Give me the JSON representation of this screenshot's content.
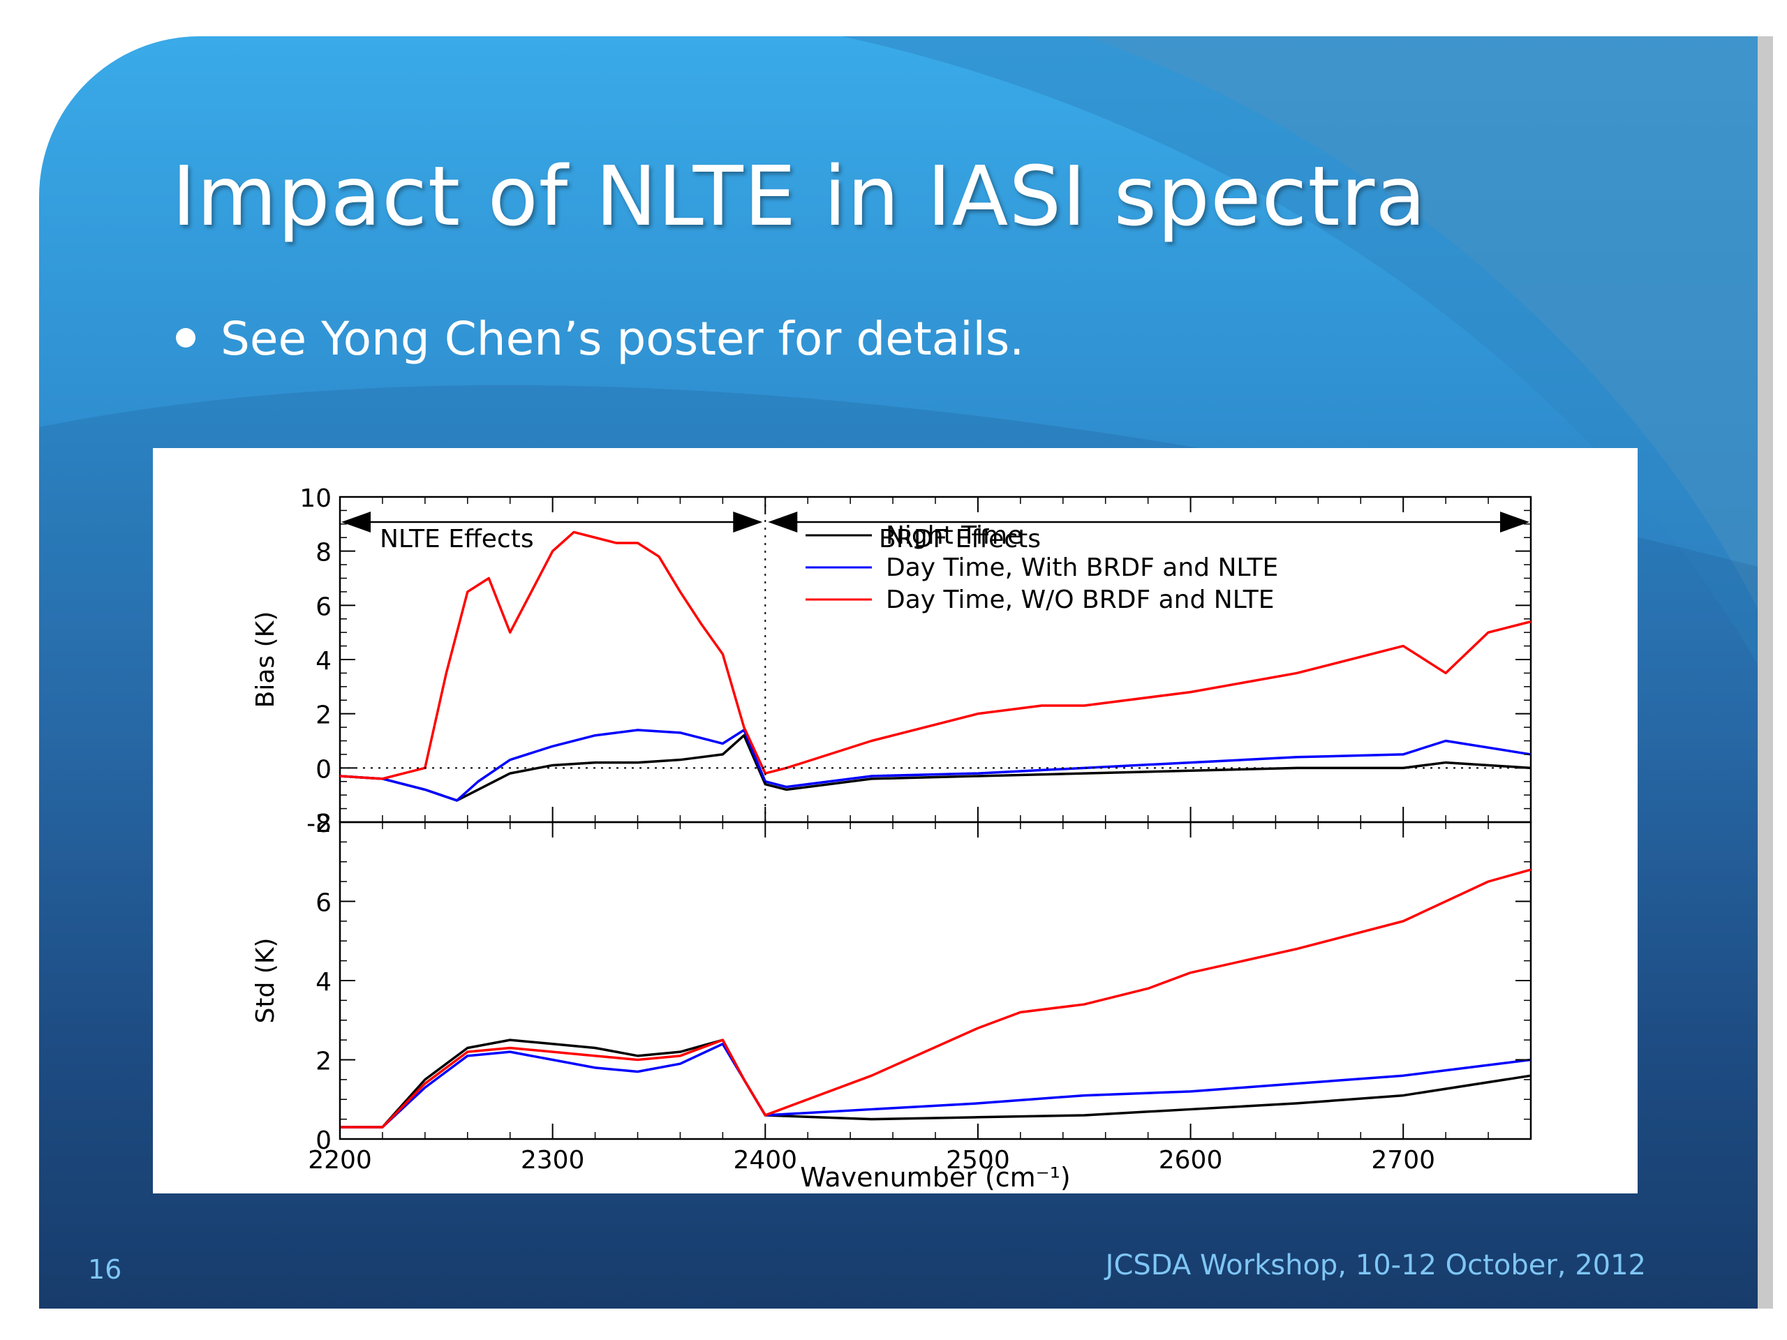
{
  "slide": {
    "title": "Impact of NLTE in IASI spectra",
    "bullet": "See Yong Chen’s poster for details.",
    "page_number": "16",
    "footer": "JCSDA Workshop, 10-12 October, 2012",
    "colors": {
      "background_top": "#3aaae8",
      "background_bottom": "#173a68",
      "text": "#ffffff",
      "footer_text": "#7fc6f5"
    }
  },
  "chart_data": {
    "type": "line",
    "xlabel": "Wavenumber (cm⁻¹)",
    "xlim": [
      2200,
      2760
    ],
    "xticks": [
      "2200",
      "2300",
      "2400",
      "2500",
      "2600",
      "2700"
    ],
    "legend": [
      "Night Time",
      "Day Time, With BRDF and NLTE",
      "Day Time, W/O BRDF and NLTE"
    ],
    "series_colors": [
      "#000000",
      "#0000ff",
      "#ff0000"
    ],
    "annotations": {
      "left_region": "NLTE Effects",
      "right_region": "BRDF Effects",
      "divider_x": 2400
    },
    "panels": [
      {
        "name": "bias",
        "ylabel": "Bias (K)",
        "ylim": [
          -2,
          10
        ],
        "yticks": [
          "-2",
          "0",
          "2",
          "4",
          "6",
          "8",
          "10"
        ],
        "series": [
          {
            "x": [
              2200,
              2220,
              2240,
              2255,
              2265,
              2280,
              2300,
              2320,
              2340,
              2360,
              2380,
              2390,
              2400,
              2410,
              2450,
              2500,
              2550,
              2600,
              2650,
              2700,
              2720,
              2760
            ],
            "y": [
              -0.3,
              -0.4,
              -0.8,
              -1.2,
              -0.8,
              -0.2,
              0.1,
              0.2,
              0.2,
              0.3,
              0.5,
              1.2,
              -0.6,
              -0.8,
              -0.4,
              -0.3,
              -0.2,
              -0.1,
              0.0,
              0.0,
              0.2,
              0.0
            ]
          },
          {
            "x": [
              2200,
              2220,
              2240,
              2255,
              2265,
              2280,
              2300,
              2320,
              2340,
              2360,
              2380,
              2390,
              2400,
              2410,
              2450,
              2500,
              2550,
              2600,
              2650,
              2700,
              2720,
              2760
            ],
            "y": [
              -0.3,
              -0.4,
              -0.8,
              -1.2,
              -0.5,
              0.3,
              0.8,
              1.2,
              1.4,
              1.3,
              0.9,
              1.4,
              -0.5,
              -0.7,
              -0.3,
              -0.2,
              0.0,
              0.2,
              0.4,
              0.5,
              1.0,
              0.5
            ]
          },
          {
            "x": [
              2200,
              2220,
              2240,
              2250,
              2260,
              2270,
              2280,
              2290,
              2300,
              2310,
              2320,
              2330,
              2340,
              2350,
              2360,
              2370,
              2380,
              2390,
              2400,
              2410,
              2450,
              2500,
              2530,
              2550,
              2600,
              2650,
              2700,
              2720,
              2740,
              2760
            ],
            "y": [
              -0.3,
              -0.4,
              0.0,
              3.5,
              6.5,
              7.0,
              5.0,
              6.5,
              8.0,
              8.7,
              8.5,
              8.3,
              8.3,
              7.8,
              6.5,
              5.3,
              4.2,
              1.5,
              -0.2,
              0.0,
              1.0,
              2.0,
              2.3,
              2.3,
              2.8,
              3.5,
              4.5,
              3.5,
              5.0,
              5.4
            ]
          }
        ]
      },
      {
        "name": "std",
        "ylabel": "Std (K)",
        "ylim": [
          0,
          8
        ],
        "yticks": [
          "0",
          "2",
          "4",
          "6",
          "8"
        ],
        "series": [
          {
            "x": [
              2200,
              2220,
              2240,
              2260,
              2280,
              2300,
              2320,
              2340,
              2360,
              2380,
              2390,
              2400,
              2450,
              2500,
              2550,
              2600,
              2650,
              2700,
              2760
            ],
            "y": [
              0.3,
              0.3,
              1.5,
              2.3,
              2.5,
              2.4,
              2.3,
              2.1,
              2.2,
              2.5,
              1.5,
              0.6,
              0.5,
              0.55,
              0.6,
              0.75,
              0.9,
              1.1,
              1.6
            ]
          },
          {
            "x": [
              2200,
              2220,
              2240,
              2260,
              2280,
              2300,
              2320,
              2340,
              2360,
              2380,
              2390,
              2400,
              2450,
              2500,
              2550,
              2600,
              2650,
              2700,
              2760
            ],
            "y": [
              0.3,
              0.3,
              1.3,
              2.1,
              2.2,
              2.0,
              1.8,
              1.7,
              1.9,
              2.4,
              1.5,
              0.6,
              0.75,
              0.9,
              1.1,
              1.2,
              1.4,
              1.6,
              2.0
            ]
          },
          {
            "x": [
              2200,
              2220,
              2240,
              2260,
              2280,
              2300,
              2320,
              2340,
              2360,
              2380,
              2390,
              2400,
              2450,
              2500,
              2520,
              2550,
              2580,
              2600,
              2650,
              2700,
              2740,
              2760
            ],
            "y": [
              0.3,
              0.3,
              1.4,
              2.2,
              2.3,
              2.2,
              2.1,
              2.0,
              2.1,
              2.5,
              1.5,
              0.6,
              1.6,
              2.8,
              3.2,
              3.4,
              3.8,
              4.2,
              4.8,
              5.5,
              6.5,
              6.8
            ]
          }
        ]
      }
    ]
  }
}
